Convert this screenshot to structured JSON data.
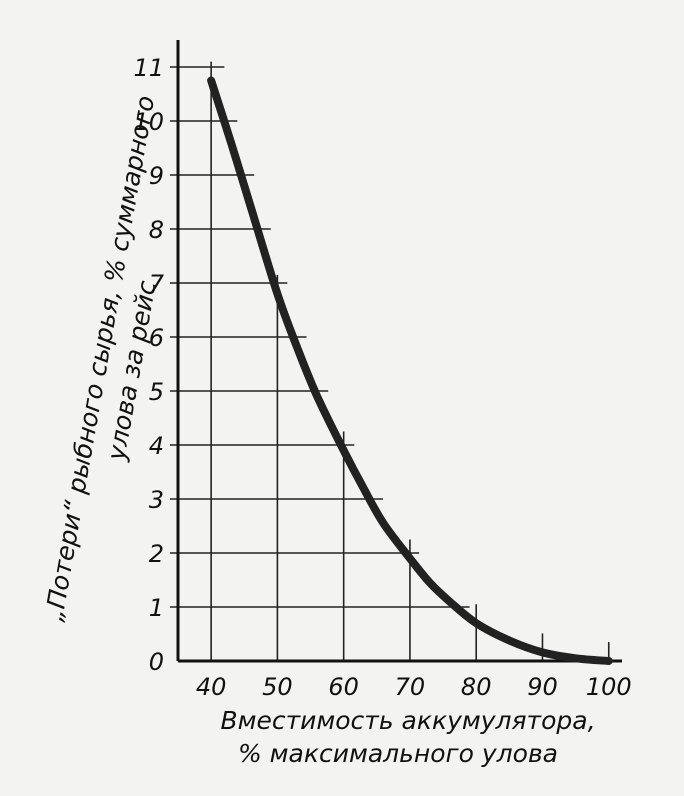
{
  "chart_data": {
    "type": "line",
    "x_label_lines": [
      "Вместимость аккумулятора,",
      "% максимального улова"
    ],
    "y_label_lines": [
      "„Потери“ рыбного сырья, % суммарного",
      "улова за рейс"
    ],
    "x_ticks": [
      40,
      50,
      60,
      70,
      80,
      90,
      100
    ],
    "y_ticks": [
      0,
      1,
      2,
      3,
      4,
      5,
      6,
      7,
      8,
      9,
      10,
      11
    ],
    "xlim": [
      35,
      102
    ],
    "ylim": [
      0,
      11.5
    ],
    "grid": true,
    "series": [
      {
        "x": [
          40,
          43,
          46,
          50,
          53,
          56,
          60,
          63,
          66,
          70,
          73,
          76,
          80,
          85,
          90,
          95,
          100
        ],
        "y": [
          10.75,
          9.6,
          8.4,
          6.8,
          5.8,
          4.9,
          3.9,
          3.2,
          2.55,
          1.9,
          1.45,
          1.1,
          0.7,
          0.38,
          0.16,
          0.05,
          0.0
        ]
      }
    ],
    "colors": {
      "curve": "#222222",
      "grid": "#222222",
      "background": "#f3f3f1"
    }
  }
}
